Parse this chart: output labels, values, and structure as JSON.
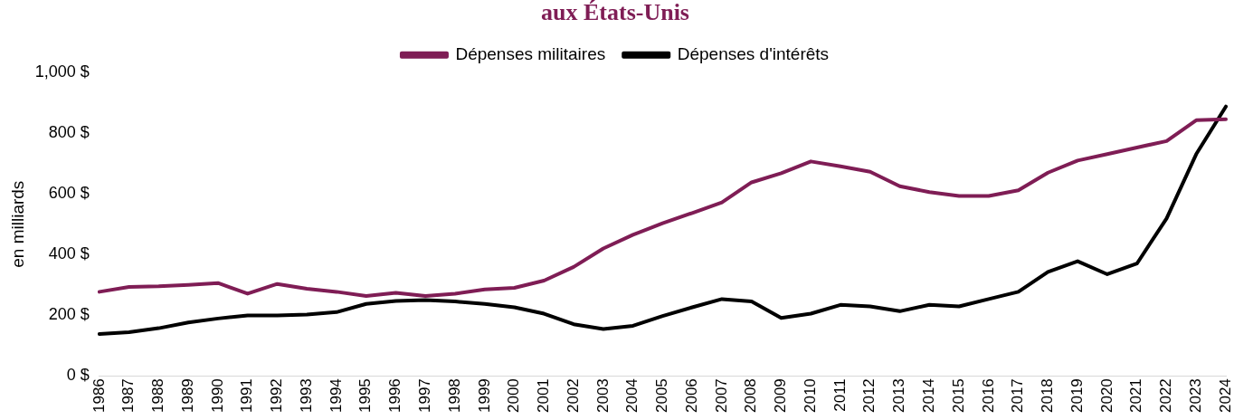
{
  "chart_data": {
    "type": "line",
    "title": "aux États-Unis",
    "ylabel": "en milliards",
    "categories": [
      "1986",
      "1987",
      "1988",
      "1989",
      "1990",
      "1991",
      "1992",
      "1993",
      "1994",
      "1995",
      "1996",
      "1997",
      "1998",
      "1999",
      "2000",
      "2001",
      "2002",
      "2003",
      "2004",
      "2005",
      "2006",
      "2007",
      "2008",
      "2009",
      "2010",
      "2011",
      "2012",
      "2013",
      "2014",
      "2015",
      "2016",
      "2017",
      "2018",
      "2019",
      "2020",
      "2021",
      "2022",
      "2023",
      "2024"
    ],
    "series": [
      {
        "name": "Dépenses militaires",
        "color": "#7f1d55",
        "values": [
          277,
          293,
          295,
          300,
          306,
          271,
          303,
          287,
          277,
          263,
          274,
          263,
          271,
          285,
          290,
          314,
          359,
          420,
          465,
          503,
          537,
          572,
          638,
          668,
          707,
          691,
          673,
          625,
          606,
          593,
          593,
          612,
          670,
          710,
          731,
          753,
          774,
          843,
          846
        ]
      },
      {
        "name": "Dépenses d'intérêts",
        "color": "#000000",
        "values": [
          138,
          144,
          157,
          176,
          189,
          199,
          199,
          202,
          210,
          237,
          247,
          250,
          245,
          237,
          226,
          205,
          170,
          154,
          165,
          197,
          226,
          253,
          245,
          191,
          205,
          234,
          229,
          213,
          234,
          229,
          253,
          277,
          343,
          378,
          335,
          370,
          519,
          731,
          888
        ]
      }
    ],
    "ylim": [
      0,
      1000
    ],
    "yticks": [
      {
        "value": 0,
        "label": "0 $"
      },
      {
        "value": 200,
        "label": "200 $"
      },
      {
        "value": 400,
        "label": "400 $"
      },
      {
        "value": 600,
        "label": "600 $"
      },
      {
        "value": 800,
        "label": "800 $"
      },
      {
        "value": 1000,
        "label": "1,000 $"
      }
    ],
    "grid": false,
    "legend": "top",
    "marker": "none",
    "line_style": "solid"
  }
}
